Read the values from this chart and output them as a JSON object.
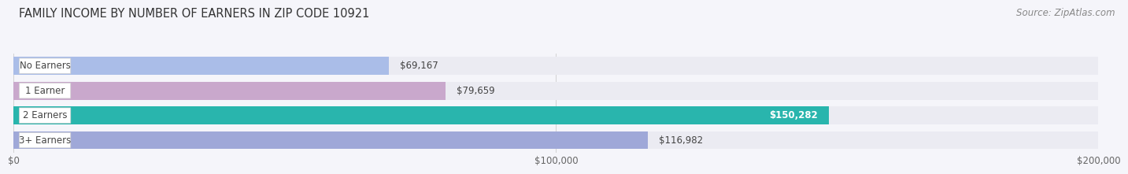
{
  "title": "FAMILY INCOME BY NUMBER OF EARNERS IN ZIP CODE 10921",
  "source": "Source: ZipAtlas.com",
  "categories": [
    "No Earners",
    "1 Earner",
    "2 Earners",
    "3+ Earners"
  ],
  "values": [
    69167,
    79659,
    150282,
    116982
  ],
  "bar_colors": [
    "#aabde8",
    "#c9a8cc",
    "#29b5ad",
    "#9fa8d8"
  ],
  "bar_bg_color": "#ebebf2",
  "value_labels": [
    "$69,167",
    "$79,659",
    "$150,282",
    "$116,982"
  ],
  "value_inside": [
    false,
    false,
    true,
    false
  ],
  "xlim": [
    0,
    200000
  ],
  "xticks": [
    0,
    100000,
    200000
  ],
  "xtick_labels": [
    "$0",
    "$100,000",
    "$200,000"
  ],
  "background_color": "#f5f5fa",
  "title_fontsize": 10.5,
  "source_fontsize": 8.5,
  "label_fontsize": 8.5,
  "value_fontsize": 8.5
}
